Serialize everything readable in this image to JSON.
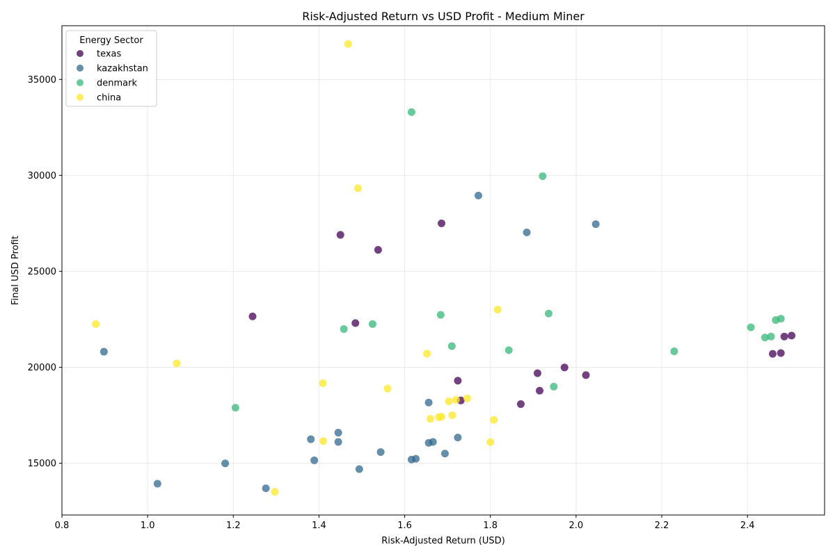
{
  "chart_data": {
    "type": "scatter",
    "title": "Risk-Adjusted Return vs USD Profit - Medium Miner",
    "xlabel": "Risk-Adjusted Return (USD)",
    "ylabel": "Final USD Profit",
    "xlim": [
      0.8,
      2.58
    ],
    "ylim": [
      12300,
      37800
    ],
    "xticks": [
      0.8,
      1.0,
      1.2,
      1.4,
      1.6,
      1.8,
      2.0,
      2.2,
      2.4
    ],
    "xtick_labels": [
      "0.8",
      "1.0",
      "1.2",
      "1.4",
      "1.6",
      "1.8",
      "2.0",
      "2.2",
      "2.4"
    ],
    "yticks": [
      15000,
      20000,
      25000,
      30000,
      35000
    ],
    "ytick_labels": [
      "15000",
      "20000",
      "25000",
      "30000",
      "35000"
    ],
    "grid": true,
    "legend": {
      "title": "Energy Sector",
      "location": "upper-left"
    },
    "series": [
      {
        "name": "texas",
        "color": "#440154",
        "points": [
          [
            1.245,
            22650
          ],
          [
            1.45,
            26900
          ],
          [
            1.485,
            22300
          ],
          [
            1.538,
            26120
          ],
          [
            1.686,
            27500
          ],
          [
            1.724,
            19300
          ],
          [
            1.731,
            18270
          ],
          [
            1.871,
            18080
          ],
          [
            1.91,
            19690
          ],
          [
            1.915,
            18780
          ],
          [
            1.973,
            19990
          ],
          [
            2.023,
            19590
          ],
          [
            2.459,
            20700
          ],
          [
            2.478,
            20740
          ],
          [
            2.486,
            21600
          ],
          [
            2.503,
            21650
          ]
        ]
      },
      {
        "name": "kazakhstan",
        "color": "#31688e",
        "points": [
          [
            0.898,
            20810
          ],
          [
            1.023,
            13930
          ],
          [
            1.181,
            14990
          ],
          [
            1.276,
            13690
          ],
          [
            1.381,
            16250
          ],
          [
            1.389,
            15150
          ],
          [
            1.445,
            16590
          ],
          [
            1.445,
            16110
          ],
          [
            1.494,
            14690
          ],
          [
            1.544,
            15580
          ],
          [
            1.616,
            15190
          ],
          [
            1.626,
            15230
          ],
          [
            1.656,
            16060
          ],
          [
            1.656,
            18160
          ],
          [
            1.666,
            16110
          ],
          [
            1.694,
            15500
          ],
          [
            1.724,
            16340
          ],
          [
            1.772,
            28950
          ],
          [
            1.885,
            27030
          ],
          [
            2.046,
            27460
          ]
        ]
      },
      {
        "name": "denmark",
        "color": "#35b779",
        "points": [
          [
            1.205,
            17890
          ],
          [
            1.458,
            21990
          ],
          [
            1.525,
            22250
          ],
          [
            1.616,
            33300
          ],
          [
            1.684,
            22730
          ],
          [
            1.71,
            21100
          ],
          [
            1.843,
            20890
          ],
          [
            1.922,
            29960
          ],
          [
            1.936,
            22800
          ],
          [
            1.948,
            18990
          ],
          [
            2.229,
            20830
          ],
          [
            2.408,
            22080
          ],
          [
            2.441,
            21550
          ],
          [
            2.455,
            21600
          ],
          [
            2.466,
            22460
          ],
          [
            2.478,
            22530
          ]
        ]
      },
      {
        "name": "china",
        "color": "#fde725",
        "points": [
          [
            0.879,
            22250
          ],
          [
            1.068,
            20200
          ],
          [
            1.297,
            13510
          ],
          [
            1.409,
            19170
          ],
          [
            1.41,
            16150
          ],
          [
            1.468,
            36850
          ],
          [
            1.491,
            29330
          ],
          [
            1.56,
            18890
          ],
          [
            1.652,
            20710
          ],
          [
            1.66,
            17310
          ],
          [
            1.68,
            17400
          ],
          [
            1.686,
            17420
          ],
          [
            1.703,
            18220
          ],
          [
            1.711,
            17500
          ],
          [
            1.72,
            18300
          ],
          [
            1.746,
            18380
          ],
          [
            1.8,
            16100
          ],
          [
            1.808,
            17260
          ],
          [
            1.817,
            23010
          ]
        ]
      }
    ]
  }
}
